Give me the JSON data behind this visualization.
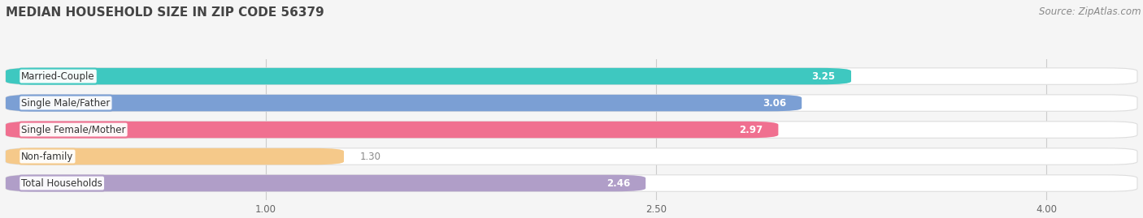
{
  "title": "MEDIAN HOUSEHOLD SIZE IN ZIP CODE 56379",
  "source": "Source: ZipAtlas.com",
  "categories": [
    "Married-Couple",
    "Single Male/Father",
    "Single Female/Mother",
    "Non-family",
    "Total Households"
  ],
  "values": [
    3.25,
    3.06,
    2.97,
    1.3,
    2.46
  ],
  "bar_colors": [
    "#3ec8c0",
    "#7b9fd4",
    "#f07090",
    "#f5c98a",
    "#b09ec8"
  ],
  "xlim": [
    0,
    4.35
  ],
  "xmin": 0.0,
  "xticks": [
    1.0,
    2.5,
    4.0
  ],
  "xtick_labels": [
    "1.00",
    "2.50",
    "4.00"
  ],
  "value_label_color": "#ffffff",
  "value_label_outside_color": "#888888",
  "title_fontsize": 11,
  "source_fontsize": 8.5,
  "label_fontsize": 8.5,
  "tick_fontsize": 8.5,
  "bar_height": 0.62,
  "fig_background_color": "#f5f5f5",
  "plot_background_color": "#f0f0f0"
}
